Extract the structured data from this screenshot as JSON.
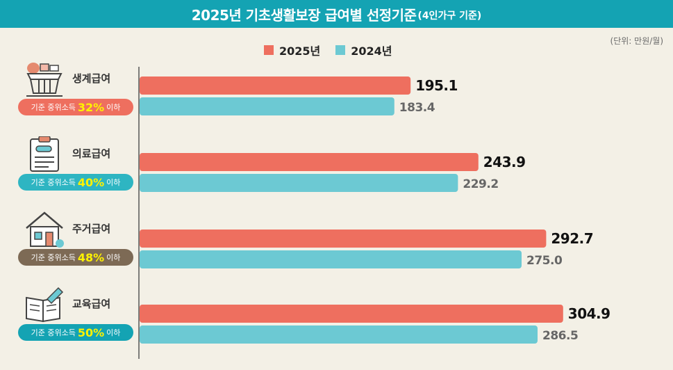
{
  "header": {
    "title": "2025년 기초생활보장 급여별 선정기준",
    "subtitle": "(4인가구 기준)"
  },
  "unit_label": "(단위: 만원/월)",
  "colors": {
    "header": "#14a3b3",
    "s2025": "#ee6f5f",
    "s2024": "#6cc9d3",
    "background": "#f3f0e6"
  },
  "categories": [
    {
      "name": "생계급여",
      "icon": "market-stall-icon",
      "pill_pre": "기준 중위소득",
      "pill_pct": "32%",
      "pill_post": "이하",
      "pill_color": "#ee6f5f"
    },
    {
      "name": "의료급여",
      "icon": "medical-clipboard-icon",
      "pill_pre": "기준 중위소득",
      "pill_pct": "40%",
      "pill_post": "이하",
      "pill_color": "#2eb5c2"
    },
    {
      "name": "주거급여",
      "icon": "house-icon",
      "pill_pre": "기준 중위소득",
      "pill_pct": "48%",
      "pill_post": "이하",
      "pill_color": "#7d6a55"
    },
    {
      "name": "교육급여",
      "icon": "book-pencil-icon",
      "pill_pre": "기준 중위소득",
      "pill_pct": "50%",
      "pill_post": "이하",
      "pill_color": "#14a3b3"
    }
  ],
  "chart_data": {
    "type": "bar",
    "orientation": "horizontal",
    "categories": [
      "생계급여",
      "의료급여",
      "주거급여",
      "교육급여"
    ],
    "series": [
      {
        "name": "2025년",
        "values": [
          195.1,
          243.9,
          292.7,
          304.9
        ],
        "labels": [
          "195.1",
          "243.9",
          "292.7",
          "304.9"
        ],
        "color": "#ee6f5f"
      },
      {
        "name": "2024년",
        "values": [
          183.4,
          229.2,
          275.0,
          286.5
        ],
        "labels": [
          "183.4",
          "229.2",
          "275.0",
          "286.5"
        ],
        "color": "#6cc9d3"
      }
    ],
    "legend_position": "top",
    "grid": false
  }
}
